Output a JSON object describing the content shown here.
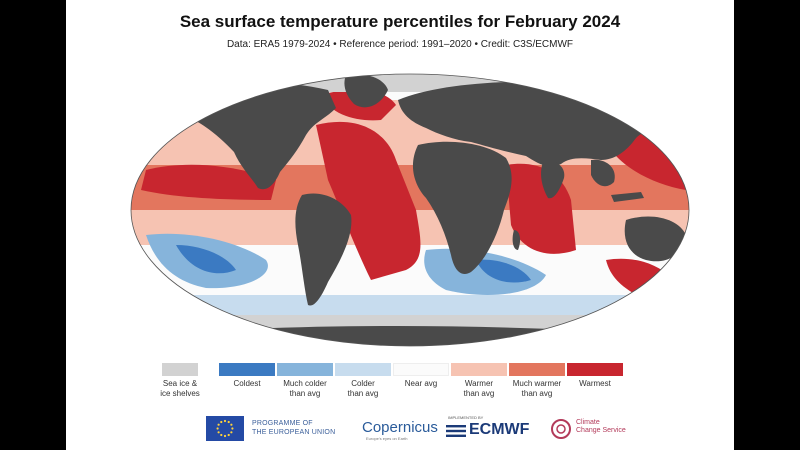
{
  "title": "Sea surface temperature percentiles for February 2024",
  "subtitle": "Data: ERA5 1979-2024 • Reference period: 1991–2020 • Credit: C3S/ECMWF",
  "colors": {
    "land": "#4a4a4a",
    "sea_ice": "#d2d2d2",
    "coldest": "#3b7ac2",
    "much_colder": "#86b4db",
    "colder": "#c7dcee",
    "near_avg": "#fbfbfb",
    "warmer": "#f6c3b2",
    "much_warmer": "#e3765e",
    "warmest": "#c8262f"
  },
  "legend": {
    "sea_ice": [
      "Sea ice &",
      "ice shelves"
    ],
    "coldest": [
      "Coldest"
    ],
    "much_colder": [
      "Much colder",
      "than avg"
    ],
    "colder": [
      "Colder",
      "than avg"
    ],
    "near_avg": [
      "Near avg"
    ],
    "warmer": [
      "Warmer",
      "than avg"
    ],
    "much_warmer": [
      "Much warmer",
      "than avg"
    ],
    "warmest": [
      "Warmest"
    ]
  },
  "logos": {
    "eu_line1": "PROGRAMME OF",
    "eu_line2": "THE EUROPEAN UNION",
    "copernicus": "Copernicus",
    "copernicus_sub": "Europe's eyes on Earth",
    "ecmwf_small": "IMPLEMENTED BY",
    "ecmwf": "ECMWF",
    "c3s_line1": "Climate",
    "c3s_line2": "Change Service"
  }
}
